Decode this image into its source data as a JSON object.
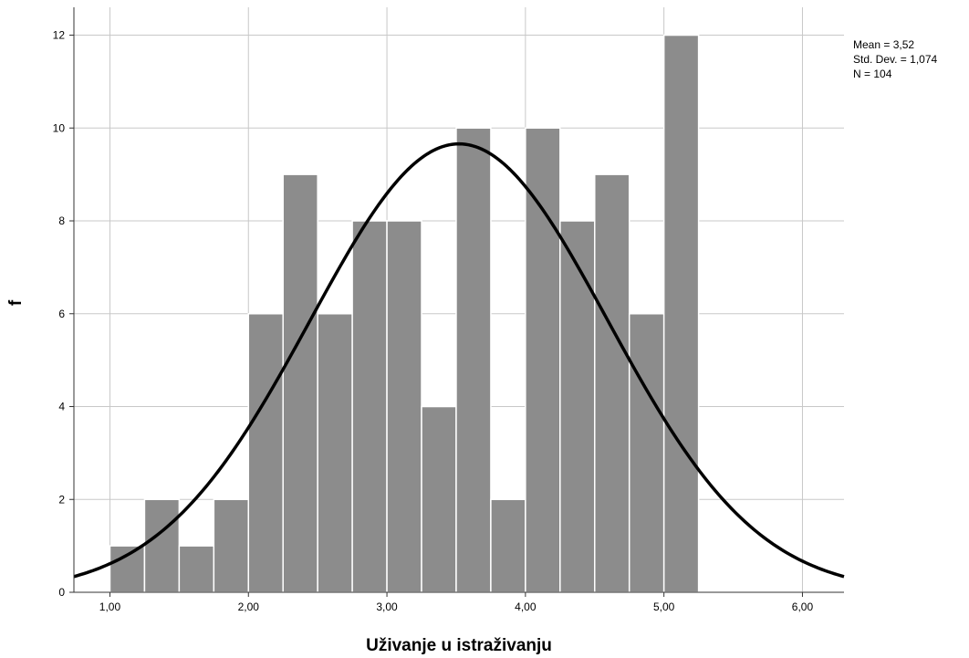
{
  "chart_data": {
    "type": "bar",
    "subtype": "histogram",
    "xlabel": "Uživanje u istraživanju",
    "ylabel": "f",
    "xlim": [
      0.74,
      6.3
    ],
    "ylim": [
      0,
      12.6
    ],
    "x_ticks": [
      1,
      2,
      3,
      4,
      5,
      6
    ],
    "x_tick_labels": [
      "1,00",
      "2,00",
      "3,00",
      "4,00",
      "5,00",
      "6,00"
    ],
    "y_ticks": [
      0,
      2,
      4,
      6,
      8,
      10,
      12
    ],
    "y_tick_labels": [
      "0",
      "2",
      "4",
      "6",
      "8",
      "10",
      "12"
    ],
    "grid": true,
    "bar_color": "#8c8c8c",
    "bar_edge_color": "#ffffff",
    "curve_color": "#000000",
    "bins": [
      {
        "start": 1.0,
        "end": 1.25,
        "count": 1
      },
      {
        "start": 1.25,
        "end": 1.5,
        "count": 2
      },
      {
        "start": 1.5,
        "end": 1.75,
        "count": 1
      },
      {
        "start": 1.75,
        "end": 2.0,
        "count": 2
      },
      {
        "start": 2.0,
        "end": 2.25,
        "count": 6
      },
      {
        "start": 2.25,
        "end": 2.5,
        "count": 9
      },
      {
        "start": 2.5,
        "end": 2.75,
        "count": 6
      },
      {
        "start": 2.75,
        "end": 3.0,
        "count": 8
      },
      {
        "start": 3.0,
        "end": 3.25,
        "count": 8
      },
      {
        "start": 3.25,
        "end": 3.5,
        "count": 4
      },
      {
        "start": 3.5,
        "end": 3.75,
        "count": 10
      },
      {
        "start": 3.75,
        "end": 4.0,
        "count": 2
      },
      {
        "start": 4.0,
        "end": 4.25,
        "count": 10
      },
      {
        "start": 4.25,
        "end": 4.5,
        "count": 8
      },
      {
        "start": 4.5,
        "end": 4.75,
        "count": 9
      },
      {
        "start": 4.75,
        "end": 5.0,
        "count": 6
      },
      {
        "start": 5.0,
        "end": 5.25,
        "count": 12
      }
    ],
    "normal_curve": {
      "mean": 3.52,
      "std_dev": 1.074,
      "n": 104,
      "bin_width": 0.25
    },
    "stats_box": {
      "mean_text": "Mean = 3,52",
      "std_text": "Std. Dev. = 1,074",
      "n_text": "N = 104"
    }
  }
}
